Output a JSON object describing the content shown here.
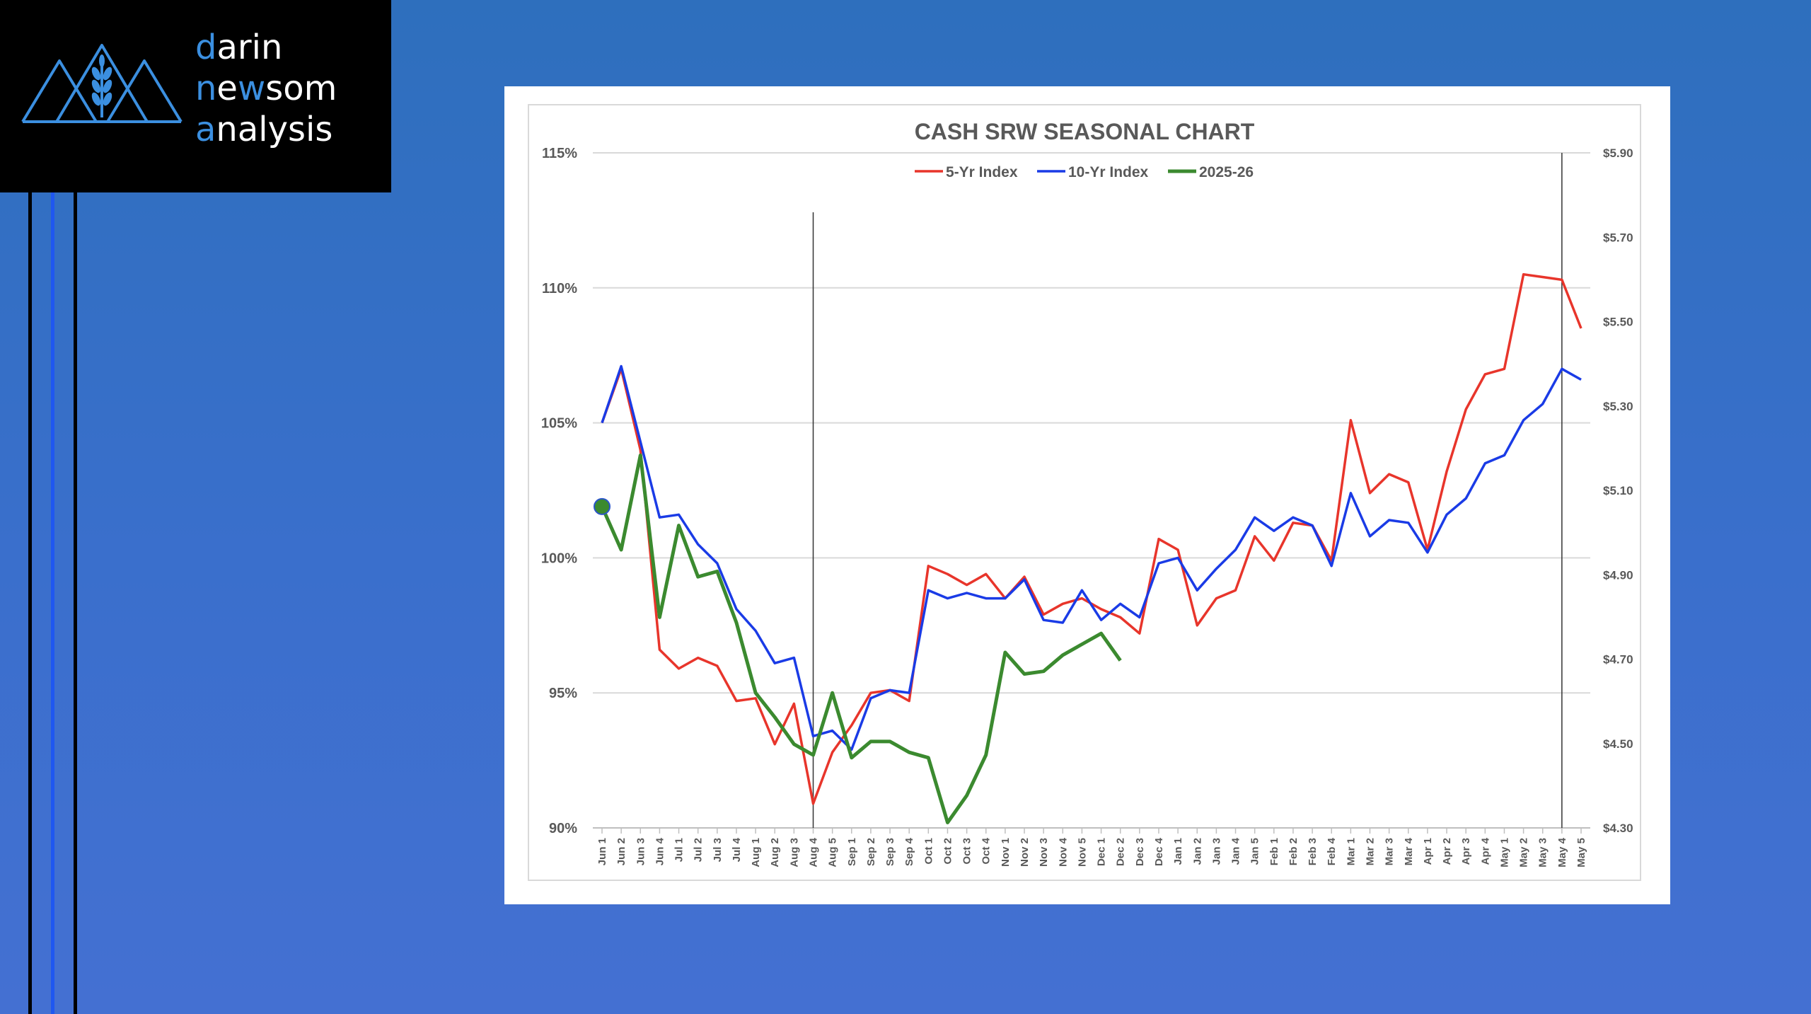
{
  "logo": {
    "lines": [
      {
        "first": "d",
        "rest": "arin"
      },
      {
        "first": "n",
        "mid1": "e",
        "mid2": "w",
        "rest": "som"
      },
      {
        "first": "a",
        "rest": "nalysis"
      }
    ],
    "accent_color": "#3b8fe0",
    "icon": "mountain-wheat-icon"
  },
  "chart_data": {
    "type": "line",
    "title": "CASH SRW SEASONAL CHART",
    "legend_position": "top-center",
    "grid": true,
    "ylim": [
      90,
      115
    ],
    "yticks": [
      "115%",
      "110%",
      "105%",
      "100%",
      "95%",
      "90%"
    ],
    "y2lim": [
      4.3,
      5.9
    ],
    "y2ticks": [
      "$5.90",
      "$5.70",
      "$5.50",
      "$5.30",
      "$5.10",
      "$4.90",
      "$4.70",
      "$4.50",
      "$4.30"
    ],
    "categories": [
      "Jun 1",
      "Jun 2",
      "Jun 3",
      "Jun 4",
      "Jul 1",
      "Jul 2",
      "Jul 3",
      "Jul 4",
      "Aug 1",
      "Aug 2",
      "Aug 3",
      "Aug 4",
      "Aug 5",
      "Sep 1",
      "Sep 2",
      "Sep 3",
      "Sep 4",
      "Oct 1",
      "Oct 2",
      "Oct 3",
      "Oct 4",
      "Nov 1",
      "Nov 2",
      "Nov 3",
      "Nov 4",
      "Nov 5",
      "Dec 1",
      "Dec 2",
      "Dec 3",
      "Dec 4",
      "Jan 1",
      "Jan 2",
      "Jan 3",
      "Jan 4",
      "Jan 5",
      "Feb 1",
      "Feb 2",
      "Feb 3",
      "Feb 4",
      "Mar 1",
      "Mar 2",
      "Mar 3",
      "Mar 4",
      "Apr 1",
      "Apr 2",
      "Apr 3",
      "Apr 4",
      "May 1",
      "May 2",
      "May 3",
      "May 4",
      "May 5"
    ],
    "vertical_markers": [
      "Aug 4",
      "May 4"
    ],
    "series": [
      {
        "name": "5-Yr Index",
        "color": "#e8352b",
        "axis": "left",
        "values": [
          105.0,
          107.0,
          104.0,
          96.6,
          95.9,
          96.3,
          96.0,
          94.7,
          94.8,
          93.1,
          94.6,
          90.9,
          92.8,
          93.8,
          95.0,
          95.1,
          94.7,
          99.7,
          99.4,
          99.0,
          99.4,
          98.5,
          99.3,
          97.9,
          98.3,
          98.5,
          98.1,
          97.8,
          97.2,
          100.7,
          100.3,
          97.5,
          98.5,
          98.8,
          100.8,
          99.9,
          101.3,
          101.2,
          99.9,
          105.1,
          102.4,
          103.1,
          102.8,
          100.3,
          103.2,
          105.5,
          106.8,
          107.0,
          110.5,
          110.4,
          110.3,
          108.5
        ]
      },
      {
        "name": "10-Yr Index",
        "color": "#1a3be6",
        "axis": "left",
        "values": [
          105.0,
          107.1,
          104.3,
          101.5,
          101.6,
          100.5,
          99.8,
          98.1,
          97.3,
          96.1,
          96.3,
          93.4,
          93.6,
          92.9,
          94.8,
          95.1,
          95.0,
          98.8,
          98.5,
          98.7,
          98.5,
          98.5,
          99.2,
          97.7,
          97.6,
          98.8,
          97.7,
          98.3,
          97.8,
          99.8,
          100.0,
          98.8,
          99.6,
          100.3,
          101.5,
          101.0,
          101.5,
          101.2,
          99.7,
          102.4,
          100.8,
          101.4,
          101.3,
          100.2,
          101.6,
          102.2,
          103.5,
          103.8,
          105.1,
          105.7,
          107.0,
          106.6
        ]
      },
      {
        "name": "2025-26",
        "color": "#3b8a2f",
        "axis": "left",
        "values": [
          101.9,
          100.3,
          103.8,
          97.8,
          101.2,
          99.3,
          99.5,
          97.6,
          95.0,
          94.1,
          93.1,
          92.7,
          95.0,
          92.6,
          93.2,
          93.2,
          92.8,
          92.6,
          90.2,
          91.2,
          92.7,
          96.5,
          95.7,
          95.8,
          96.4,
          96.8,
          97.2,
          96.2,
          null,
          null,
          null,
          null,
          null,
          null,
          null,
          null,
          null,
          null,
          null,
          null,
          null,
          null,
          null,
          null,
          null,
          null,
          null,
          null,
          null,
          null,
          null,
          null
        ],
        "start_marker": true
      }
    ]
  }
}
